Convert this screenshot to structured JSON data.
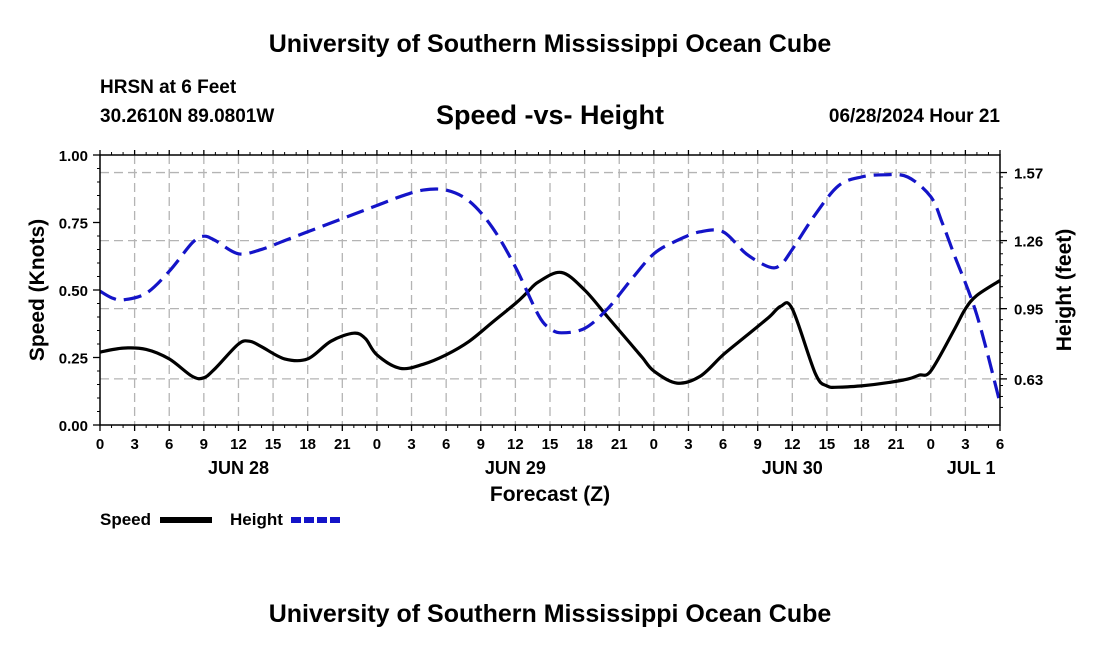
{
  "header": {
    "title": "University of Southern Mississippi Ocean Cube",
    "station": "HRSN at 6 Feet",
    "coords": "30.2610N  89.0801W",
    "subtitle": "Speed -vs- Height",
    "datetime": "06/28/2024 Hour 21"
  },
  "footer": {
    "title": "University of Southern Mississippi Ocean Cube"
  },
  "legend": {
    "speed_label": "Speed",
    "height_label": "Height"
  },
  "colors": {
    "speed": "#000000",
    "height": "#1414c8",
    "grid": "#b4b4b4"
  },
  "chart_data": {
    "type": "line",
    "title": "Speed -vs- Height",
    "xlabel": "Forecast (Z)",
    "ylabel": "Speed (Knots)",
    "y2label": "Height (feet)",
    "xlim": [
      0,
      78
    ],
    "ylim": [
      0,
      1.0
    ],
    "y2lim": [
      0.42,
      1.65
    ],
    "x_ticks": [
      0,
      3,
      6,
      9,
      12,
      15,
      18,
      21,
      24,
      27,
      30,
      33,
      36,
      39,
      42,
      45,
      48,
      51,
      54,
      57,
      60,
      63,
      66,
      69,
      72,
      75,
      78
    ],
    "x_tick_labels": [
      "0",
      "3",
      "6",
      "9",
      "12",
      "15",
      "18",
      "21",
      "0",
      "3",
      "6",
      "9",
      "12",
      "15",
      "18",
      "21",
      "0",
      "3",
      "6",
      "9",
      "12",
      "15",
      "18",
      "21",
      "0",
      "3",
      "6"
    ],
    "date_labels": [
      {
        "x": 12,
        "label": "JUN 28"
      },
      {
        "x": 36,
        "label": "JUN 29"
      },
      {
        "x": 60,
        "label": "JUN 30"
      },
      {
        "x": 75.5,
        "label": "JUL 1"
      }
    ],
    "y_ticks": [
      0,
      0.25,
      0.5,
      0.75,
      1.0
    ],
    "y_tick_labels": [
      "0.00",
      "0.25",
      "0.50",
      "0.75",
      "1.00"
    ],
    "y2_ticks": [
      0.63,
      0.95,
      1.26,
      1.57
    ],
    "y2_tick_labels": [
      "0.63",
      "0.95",
      "1.26",
      "1.57"
    ],
    "series": [
      {
        "name": "Speed",
        "axis": "left",
        "style": "solid",
        "x": [
          0,
          2,
          4,
          6,
          8,
          9,
          10,
          12,
          13,
          14,
          16,
          18,
          20,
          22,
          23,
          24,
          26,
          28,
          30,
          32,
          34,
          36,
          37,
          38,
          40,
          42,
          44,
          46,
          47,
          48,
          50,
          52,
          54,
          56,
          58,
          59,
          60,
          62,
          63,
          64,
          66,
          68,
          70,
          71,
          72,
          74,
          75,
          76,
          78
        ],
        "values": [
          0.27,
          0.285,
          0.28,
          0.245,
          0.18,
          0.175,
          0.21,
          0.3,
          0.31,
          0.29,
          0.245,
          0.245,
          0.31,
          0.34,
          0.32,
          0.26,
          0.21,
          0.225,
          0.26,
          0.31,
          0.38,
          0.45,
          0.49,
          0.53,
          0.565,
          0.5,
          0.4,
          0.3,
          0.25,
          0.2,
          0.155,
          0.18,
          0.26,
          0.33,
          0.4,
          0.44,
          0.43,
          0.19,
          0.145,
          0.14,
          0.145,
          0.155,
          0.17,
          0.185,
          0.2,
          0.35,
          0.43,
          0.48,
          0.535
        ]
      },
      {
        "name": "Height",
        "axis": "right",
        "style": "dashed",
        "x": [
          0,
          1,
          2,
          4,
          6,
          8,
          9,
          10,
          12,
          14,
          16,
          18,
          20,
          22,
          24,
          26,
          28,
          30,
          32,
          34,
          36,
          38,
          39,
          40,
          42,
          44,
          46,
          48,
          50,
          52,
          54,
          56,
          58,
          59,
          60,
          62,
          64,
          66,
          68,
          70,
          72,
          73,
          74,
          76,
          78
        ],
        "values": [
          1.03,
          1.0,
          0.99,
          1.02,
          1.12,
          1.25,
          1.28,
          1.26,
          1.2,
          1.22,
          1.26,
          1.3,
          1.34,
          1.38,
          1.42,
          1.46,
          1.49,
          1.49,
          1.44,
          1.32,
          1.14,
          0.92,
          0.86,
          0.84,
          0.86,
          0.95,
          1.08,
          1.2,
          1.26,
          1.3,
          1.3,
          1.2,
          1.14,
          1.15,
          1.22,
          1.38,
          1.51,
          1.55,
          1.56,
          1.55,
          1.46,
          1.34,
          1.2,
          0.92,
          0.52
        ]
      }
    ]
  }
}
